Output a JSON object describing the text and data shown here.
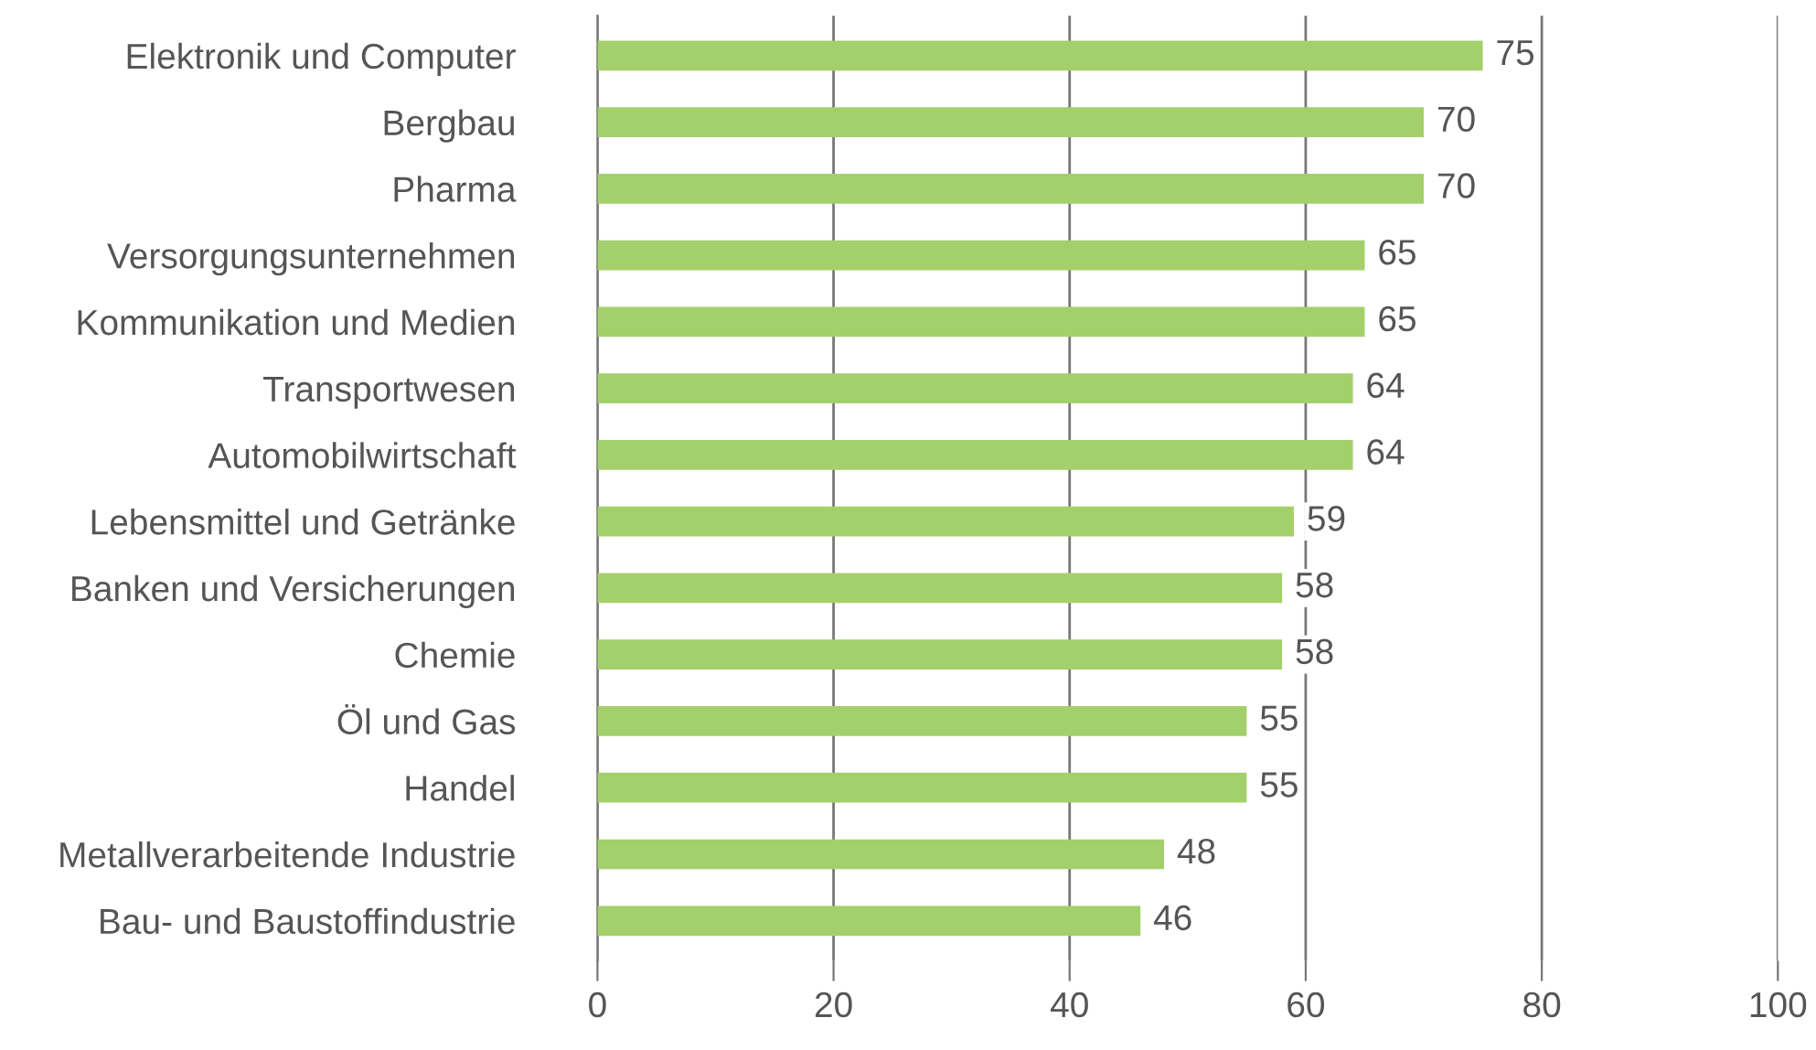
{
  "chart_data": {
    "type": "bar",
    "orientation": "horizontal",
    "categories": [
      "Elektronik und Computer",
      "Bergbau",
      "Pharma",
      "Versorgungsunternehmen",
      "Kommunikation und Medien",
      "Transportwesen",
      "Automobilwirtschaft",
      "Lebensmittel und Getränke",
      "Banken und Versicherungen",
      "Chemie",
      "Öl und Gas",
      "Handel",
      "Metallverarbeitende Industrie",
      "Bau- und Baustoffindustrie"
    ],
    "values": [
      75,
      70,
      70,
      65,
      65,
      64,
      64,
      59,
      58,
      58,
      55,
      55,
      48,
      46
    ],
    "color": "#a3d06b",
    "xlim": [
      0,
      100
    ],
    "xticks": [
      0,
      20,
      40,
      60,
      80,
      100
    ],
    "grid": "x",
    "data_labels": true
  }
}
